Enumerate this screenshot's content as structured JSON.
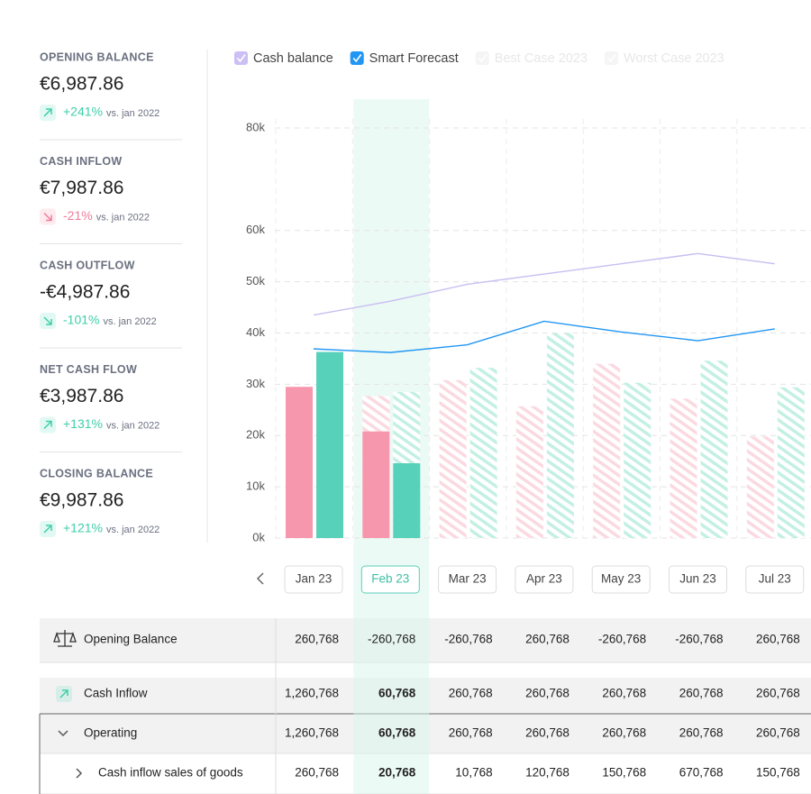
{
  "kpis": [
    {
      "label": "OPENING BALANCE",
      "value": "€6,987.86",
      "change": "+241%",
      "note": "vs. jan 2022",
      "color": "#3ecfa8"
    },
    {
      "label": "CASH INFLOW",
      "value": "€7,987.86",
      "change": "-21%",
      "note": "vs. jan 2022",
      "color": "#f07c9b"
    },
    {
      "label": "CASH OUTFLOW",
      "value": "-€4,987.86",
      "change": "-101%",
      "note": "vs. jan 2022",
      "color": "#3ecfa8"
    },
    {
      "label": "NET CASH FLOW",
      "value": "€3,987.86",
      "change": "+131%",
      "note": "vs. jan 2022",
      "color": "#3ecfa8"
    },
    {
      "label": "CLOSING BALANCE",
      "value": "€9,987.86",
      "change": "+121%",
      "note": "vs. jan 2022",
      "color": "#3ecfa8"
    }
  ],
  "chart_data": {
    "type": "bar",
    "categories": [
      "Jan 23",
      "Feb 23",
      "Mar 23",
      "Apr 23",
      "May 23",
      "Jun 23",
      "Jul 23"
    ],
    "ylim": [
      0,
      80
    ],
    "yticks": [
      {
        "value": 0,
        "label": "0k"
      },
      {
        "value": 10,
        "label": "10k"
      },
      {
        "value": 20,
        "label": "20k"
      },
      {
        "value": 30,
        "label": "30k"
      },
      {
        "value": 40,
        "label": "40k"
      },
      {
        "value": 50,
        "label": "50k"
      },
      {
        "value": 60,
        "label": "60k"
      },
      {
        "value": 80,
        "label": "80k"
      }
    ],
    "grid": true,
    "series": [
      {
        "name": "Cash balance",
        "type": "line",
        "color": "#c9bdf2",
        "values": [
          43.5,
          46.2,
          49.5,
          51.5,
          53.5,
          55.5,
          53.5
        ]
      },
      {
        "name": "Smart Forecast",
        "type": "line",
        "color": "#2196f3",
        "values": [
          36.9,
          36.2,
          37.7,
          42.3,
          40.2,
          38.5,
          40.8
        ]
      },
      {
        "type": "bar",
        "pattern": "hatch",
        "color": "#fde3e9",
        "values": [
          null,
          27.7,
          30.8,
          25.7,
          34,
          27.2,
          19.8
        ]
      },
      {
        "type": "bar",
        "pattern": "hatch",
        "color": "#cdf3e8",
        "values": [
          null,
          28.5,
          33.2,
          40,
          30.3,
          34.6,
          29.4
        ]
      },
      {
        "type": "bar",
        "color": "#f797ae",
        "values": [
          29.5,
          20.8,
          null,
          null,
          null,
          null,
          null
        ]
      },
      {
        "type": "bar",
        "color": "#57d1b9",
        "values": [
          36.3,
          14.6,
          null,
          null,
          null,
          null,
          null
        ]
      }
    ],
    "legend_disabled": [
      "Best Case 2023",
      "Worst Case 2023"
    ],
    "selected": "Feb 23"
  },
  "table": {
    "rows": [
      {
        "label": "Opening Balance",
        "values": [
          "260,768",
          "-260,768",
          "-260,768",
          "260,768",
          "-260,768",
          "-260,768",
          "260,768"
        ]
      },
      {
        "label": "Cash Inflow",
        "values": [
          "1,260,768",
          "60,768",
          "260,768",
          "260,768",
          "260,768",
          "260,768",
          "260,768"
        ]
      },
      {
        "label": "Operating",
        "values": [
          "1,260,768",
          "60,768",
          "260,768",
          "260,768",
          "260,768",
          "260,768",
          "260,768"
        ]
      },
      {
        "label": "Cash inflow sales of goods",
        "values": [
          "260,768",
          "20,768",
          "10,768",
          "120,768",
          "150,768",
          "670,768",
          "150,768"
        ]
      }
    ]
  }
}
